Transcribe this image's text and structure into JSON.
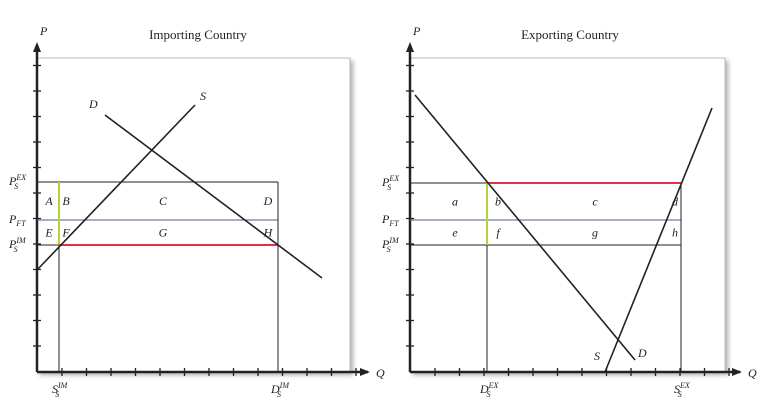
{
  "left": {
    "title": "Importing Country",
    "axis_p": "P",
    "axis_q": "Q",
    "price_labels": [
      {
        "base": "P",
        "sub": "S",
        "sup": "EX"
      },
      {
        "base": "P",
        "sub": "FT"
      },
      {
        "base": "P",
        "sub": "S",
        "sup": "IM"
      }
    ],
    "quantity_labels": [
      {
        "base": "S",
        "sub": "S",
        "sup": "IM"
      },
      {
        "base": "D",
        "sub": "S",
        "sup": "IM"
      }
    ],
    "curve_labels": [
      "D",
      "S"
    ],
    "areas": [
      "A",
      "B",
      "C",
      "D",
      "E",
      "F",
      "G",
      "H"
    ]
  },
  "right": {
    "title": "Exporting Country",
    "axis_p": "P",
    "axis_q": "Q",
    "price_labels": [
      {
        "base": "P",
        "sub": "S",
        "sup": "EX"
      },
      {
        "base": "P",
        "sub": "FT"
      },
      {
        "base": "P",
        "sub": "S",
        "sup": "IM"
      }
    ],
    "quantity_labels": [
      {
        "base": "D",
        "sub": "S",
        "sup": "EX"
      },
      {
        "base": "S",
        "sub": "S",
        "sup": "EX"
      }
    ],
    "curve_labels": [
      "S",
      "D"
    ],
    "areas": [
      "a",
      "b",
      "c",
      "d",
      "e",
      "f",
      "g",
      "h"
    ]
  }
}
